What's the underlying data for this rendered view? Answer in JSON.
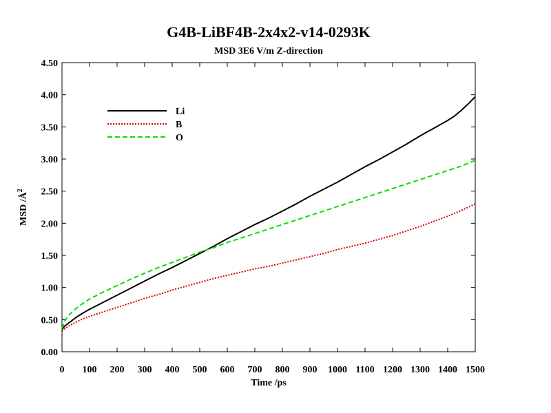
{
  "chart_data": {
    "type": "line",
    "title": "G4B-LiBF4B-2x4x2-v14-0293K",
    "subtitle": "MSD  3E6 V/m Z-direction",
    "xlabel": "Time /ps",
    "ylabel_main": "MSD /Å",
    "ylabel_sup": "2",
    "xlim": [
      0,
      1500
    ],
    "ylim": [
      0,
      4.5
    ],
    "xticks": [
      0,
      100,
      200,
      300,
      400,
      500,
      600,
      700,
      800,
      900,
      1000,
      1100,
      1200,
      1300,
      1400,
      1500
    ],
    "xtick_labels": [
      "0",
      "100",
      "200",
      "300",
      "400",
      "500",
      "600",
      "700",
      "800",
      "900",
      "1000",
      "1100",
      "1200",
      "1300",
      "1400",
      "1500"
    ],
    "yticks": [
      0,
      0.5,
      1,
      1.5,
      2,
      2.5,
      3,
      3.5,
      4,
      4.5
    ],
    "ytick_labels": [
      "0.00",
      "0.50",
      "1.00",
      "1.50",
      "2.00",
      "2.50",
      "3.00",
      "3.50",
      "4.00",
      "4.50"
    ],
    "legend_position": "top-left",
    "grid": false,
    "series": [
      {
        "name": "Li",
        "color": "#000000",
        "dash": "solid",
        "x": [
          0,
          10,
          25,
          50,
          75,
          100,
          150,
          200,
          250,
          300,
          350,
          400,
          450,
          500,
          550,
          600,
          650,
          700,
          750,
          800,
          850,
          900,
          950,
          1000,
          1050,
          1100,
          1150,
          1200,
          1250,
          1300,
          1350,
          1375,
          1400,
          1425,
          1450,
          1475,
          1500
        ],
        "y": [
          0.35,
          0.4,
          0.45,
          0.53,
          0.6,
          0.66,
          0.77,
          0.88,
          0.99,
          1.1,
          1.21,
          1.31,
          1.42,
          1.53,
          1.64,
          1.76,
          1.87,
          1.98,
          2.08,
          2.19,
          2.3,
          2.42,
          2.53,
          2.64,
          2.76,
          2.88,
          2.99,
          3.11,
          3.23,
          3.36,
          3.48,
          3.54,
          3.6,
          3.67,
          3.76,
          3.86,
          3.97
        ]
      },
      {
        "name": "B",
        "color": "#d00000",
        "dash": "dotted",
        "x": [
          0,
          10,
          25,
          50,
          75,
          100,
          150,
          200,
          250,
          300,
          350,
          400,
          450,
          500,
          550,
          600,
          650,
          700,
          750,
          800,
          850,
          900,
          950,
          1000,
          1050,
          1100,
          1150,
          1200,
          1250,
          1300,
          1350,
          1400,
          1450,
          1500
        ],
        "y": [
          0.32,
          0.36,
          0.4,
          0.46,
          0.51,
          0.55,
          0.62,
          0.69,
          0.76,
          0.83,
          0.89,
          0.96,
          1.02,
          1.08,
          1.14,
          1.19,
          1.24,
          1.29,
          1.33,
          1.38,
          1.43,
          1.48,
          1.53,
          1.59,
          1.64,
          1.69,
          1.75,
          1.81,
          1.88,
          1.95,
          2.03,
          2.11,
          2.2,
          2.3
        ]
      },
      {
        "name": "O",
        "color": "#00e000",
        "dash": "dashed",
        "x": [
          0,
          5,
          10,
          25,
          50,
          75,
          100,
          150,
          200,
          250,
          300,
          350,
          400,
          450,
          500,
          550,
          600,
          650,
          700,
          750,
          800,
          850,
          900,
          950,
          1000,
          1050,
          1100,
          1150,
          1200,
          1250,
          1300,
          1350,
          1400,
          1450,
          1500
        ],
        "y": [
          0.36,
          0.42,
          0.48,
          0.57,
          0.67,
          0.75,
          0.82,
          0.93,
          1.03,
          1.13,
          1.22,
          1.31,
          1.39,
          1.47,
          1.55,
          1.62,
          1.7,
          1.77,
          1.84,
          1.91,
          1.98,
          2.05,
          2.12,
          2.19,
          2.26,
          2.33,
          2.4,
          2.47,
          2.54,
          2.61,
          2.68,
          2.75,
          2.82,
          2.89,
          2.98
        ]
      }
    ]
  }
}
